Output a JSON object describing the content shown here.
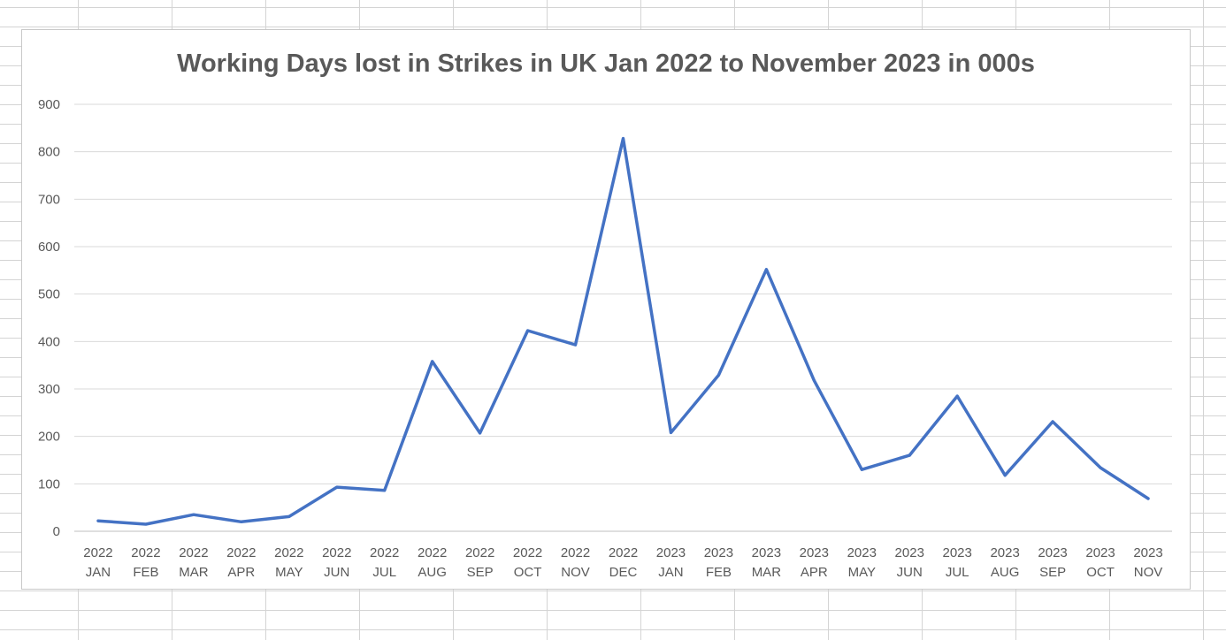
{
  "chart_data": {
    "type": "line",
    "title": "Working Days lost in Strikes in UK Jan 2022 to November 2023 in 000s",
    "xlabel": "",
    "ylabel": "",
    "ylim": [
      0,
      900
    ],
    "yticks": [
      "0",
      "100",
      "200",
      "300",
      "400",
      "500",
      "600",
      "700",
      "800",
      "900"
    ],
    "grid": true,
    "legend": "none",
    "categories": [
      [
        "2022",
        "JAN"
      ],
      [
        "2022",
        "FEB"
      ],
      [
        "2022",
        "MAR"
      ],
      [
        "2022",
        "APR"
      ],
      [
        "2022",
        "MAY"
      ],
      [
        "2022",
        "JUN"
      ],
      [
        "2022",
        "JUL"
      ],
      [
        "2022",
        "AUG"
      ],
      [
        "2022",
        "SEP"
      ],
      [
        "2022",
        "OCT"
      ],
      [
        "2022",
        "NOV"
      ],
      [
        "2022",
        "DEC"
      ],
      [
        "2023",
        "JAN"
      ],
      [
        "2023",
        "FEB"
      ],
      [
        "2023",
        "MAR"
      ],
      [
        "2023",
        "APR"
      ],
      [
        "2023",
        "MAY"
      ],
      [
        "2023",
        "JUN"
      ],
      [
        "2023",
        "JUL"
      ],
      [
        "2023",
        "AUG"
      ],
      [
        "2023",
        "SEP"
      ],
      [
        "2023",
        "OCT"
      ],
      [
        "2023",
        "NOV"
      ]
    ],
    "series": [
      {
        "values": [
          22,
          15,
          35,
          20,
          31,
          93,
          86,
          358,
          207,
          423,
          393,
          828,
          208,
          329,
          552,
          318,
          130,
          160,
          285,
          118,
          231,
          134,
          69
        ],
        "color": "#4472c4"
      }
    ]
  }
}
